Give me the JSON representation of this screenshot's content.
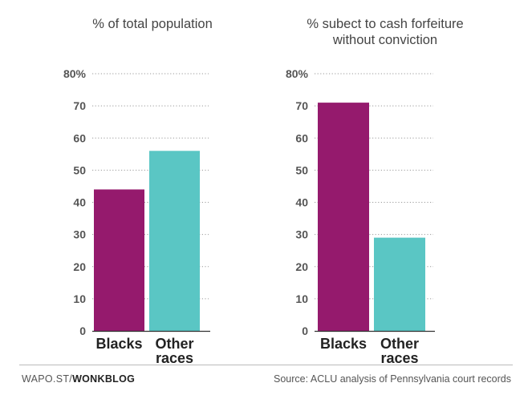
{
  "chart_data": [
    {
      "type": "bar",
      "title": "% of total population",
      "categories": [
        [
          "Blacks"
        ],
        [
          "Other",
          "races"
        ]
      ],
      "values": [
        44,
        56
      ],
      "colors": [
        "#951a6d",
        "#5ac6c4"
      ],
      "ylim": [
        0,
        80
      ],
      "yticks": [
        "0",
        "10",
        "20",
        "30",
        "40",
        "50",
        "60",
        "70",
        "80%"
      ],
      "grid": true
    },
    {
      "type": "bar",
      "title_lines": [
        "% subect to cash forfeiture",
        "without conviction"
      ],
      "categories": [
        [
          "Blacks"
        ],
        [
          "Other",
          "races"
        ]
      ],
      "values": [
        71,
        29
      ],
      "colors": [
        "#951a6d",
        "#5ac6c4"
      ],
      "ylim": [
        0,
        80
      ],
      "yticks": [
        "0",
        "10",
        "20",
        "30",
        "40",
        "50",
        "60",
        "70",
        "80%"
      ],
      "grid": true
    }
  ],
  "footer": {
    "brand_prefix": "WAPO.ST/",
    "brand_name": "WONKBLOG",
    "source": "Source: ACLU analysis of Pennsylvania court records"
  }
}
